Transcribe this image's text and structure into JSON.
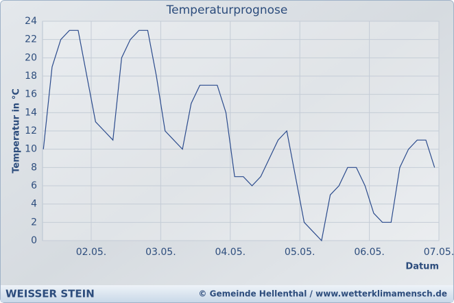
{
  "chart_data": {
    "type": "line",
    "title": "Temperaturprognose",
    "y_label": "Temperatur in °C",
    "x_label": "Datum",
    "footer_left": "WEISSER STEIN",
    "footer_right": "© Gemeinde Hellenthal / www.wetterklimamensch.de",
    "color": "#2a4a8c",
    "grid": true,
    "x": [
      1.3125,
      1.4375,
      1.5625,
      1.6875,
      1.8125,
      1.9375,
      2.0625,
      2.1875,
      2.3125,
      2.4375,
      2.5625,
      2.6875,
      2.8125,
      2.9375,
      3.0625,
      3.1875,
      3.3125,
      3.4375,
      3.5625,
      3.6875,
      3.8125,
      3.9375,
      4.0625,
      4.1875,
      4.3125,
      4.4375,
      4.5625,
      4.6875,
      4.8125,
      4.9375,
      5.0625,
      5.1875,
      5.3125,
      5.4375,
      5.5625,
      5.6875,
      5.8125,
      5.9375,
      6.0625,
      6.1875,
      6.3125,
      6.4375,
      6.5625,
      6.6875,
      6.8125,
      6.9375
    ],
    "values": [
      10,
      19,
      22,
      23,
      23,
      18,
      13,
      12,
      11,
      20,
      22,
      23,
      23,
      18,
      12,
      11,
      10,
      15,
      17,
      17,
      17,
      14,
      7,
      7,
      6,
      7,
      9,
      11,
      12,
      7,
      2,
      1,
      0,
      5,
      6,
      8,
      8,
      6,
      3,
      2,
      2,
      8,
      10,
      11,
      11,
      8
    ],
    "xlim": [
      1.3,
      7
    ],
    "xticks": [
      {
        "value": 2,
        "label": "02.05."
      },
      {
        "value": 3,
        "label": "03.05."
      },
      {
        "value": 4,
        "label": "04.05."
      },
      {
        "value": 5,
        "label": "05.05."
      },
      {
        "value": 6,
        "label": "06.05."
      },
      {
        "value": 7,
        "label": "07.05."
      }
    ],
    "ylim": [
      0,
      24
    ],
    "yticks": [
      0,
      2,
      4,
      6,
      8,
      10,
      12,
      14,
      16,
      18,
      20,
      22,
      24
    ]
  }
}
